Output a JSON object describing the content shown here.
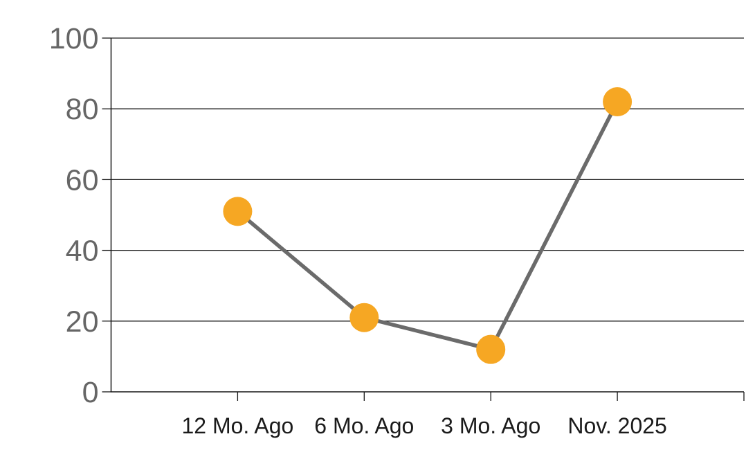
{
  "chart_data": {
    "type": "line",
    "categories": [
      "12 Mo. Ago",
      "6 Mo. Ago",
      "3 Mo. Ago",
      "Nov. 2025"
    ],
    "values": [
      51,
      21,
      12,
      82
    ],
    "title": "",
    "xlabel": "",
    "ylabel": "",
    "ylim": [
      0,
      100
    ],
    "yticks": [
      0,
      20,
      40,
      60,
      80,
      100
    ],
    "grid": true,
    "legend_position": "none",
    "colors": {
      "marker": "#F6A723",
      "line": "#6B6B6B",
      "axis": "#161616",
      "gridline": "#1B1B1B",
      "y_tick_label": "#666666",
      "x_tick_label": "#1B1B1B",
      "background": "#FFFFFF"
    }
  }
}
